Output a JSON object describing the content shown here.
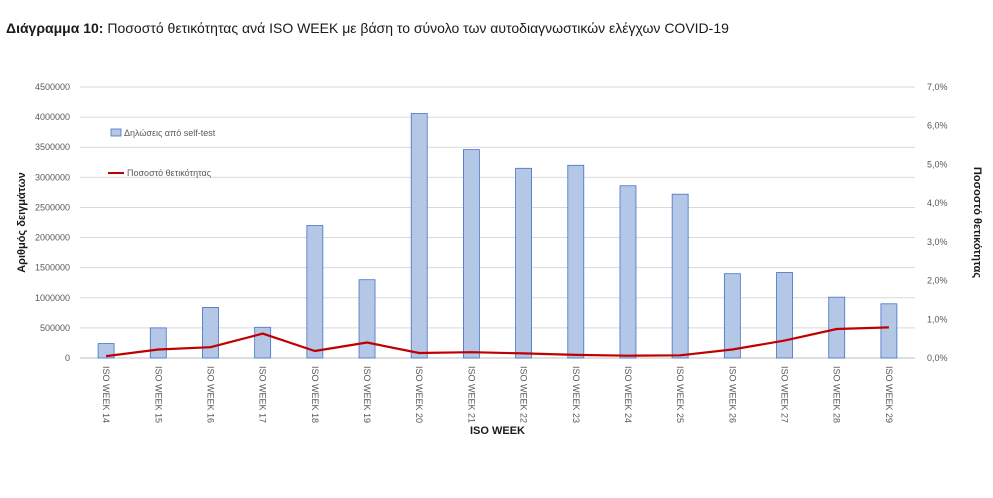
{
  "caption": {
    "lead": "Διάγραμμα 10:",
    "text": "Ποσοστό θετικότητας ανά ISO WEEK με βάση το σύνολο των αυτοδιαγνωστικών ελέγχων COVID-19"
  },
  "colors": {
    "bar_fill": "#b4c7e7",
    "bar_stroke": "#4472c4",
    "line": "#c00000",
    "grid": "#d9d9d9"
  },
  "chart_data": {
    "type": "bar",
    "categories": [
      "ISO WEEK 14",
      "ISO WEEK 15",
      "ISO WEEK 16",
      "ISO WEEK 17",
      "ISO WEEK 18",
      "ISO WEEK 19",
      "ISO WEEK 20",
      "ISO WEEK 21",
      "ISO WEEK 22",
      "ISO WEEK 23",
      "ISO WEEK 24",
      "ISO WEEK 25",
      "ISO WEEK 26",
      "ISO WEEK 27",
      "ISO WEEK 28",
      "ISO WEEK 29"
    ],
    "series": [
      {
        "name": "Δηλώσεις από self-test",
        "kind": "bar",
        "axis": "left",
        "values": [
          240000,
          500000,
          840000,
          510000,
          2200000,
          1300000,
          4060000,
          3460000,
          3150000,
          3200000,
          2860000,
          2720000,
          1400000,
          1420000,
          1010000,
          900000
        ]
      },
      {
        "name": "Ποσοστό θετικότητας",
        "kind": "line",
        "axis": "right",
        "values": [
          0.05,
          0.22,
          0.28,
          0.63,
          0.18,
          0.4,
          0.13,
          0.15,
          0.12,
          0.08,
          0.06,
          0.07,
          0.22,
          0.45,
          0.75,
          0.79
        ]
      }
    ],
    "xlabel": "ISO WEEK",
    "ylabel": "Αριθμός δειγμάτων",
    "y2label": "Ποσοστό θετικότητας",
    "ylim": [
      0,
      4500000
    ],
    "y2lim": [
      0,
      7.0
    ],
    "yticks": [
      "0",
      "500000",
      "1000000",
      "1500000",
      "2000000",
      "2500000",
      "3000000",
      "3500000",
      "4000000",
      "4500000"
    ],
    "y2ticks": [
      "0,0%",
      "1,0%",
      "2,0%",
      "3,0%",
      "4,0%",
      "5,0%",
      "6,0%",
      "7,0%"
    ],
    "grid": true,
    "legend_position": "top-left"
  }
}
